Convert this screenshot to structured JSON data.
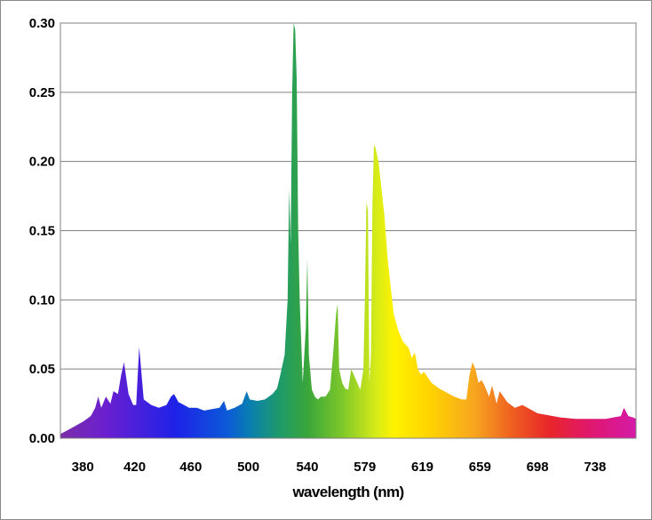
{
  "chart_data": {
    "type": "area",
    "title": "",
    "xlabel": "wavelength (nm)",
    "ylabel": "",
    "xlim": [
      380,
      760
    ],
    "ylim": [
      0,
      0.3
    ],
    "x_tick_labels": [
      "380",
      "420",
      "460",
      "500",
      "540",
      "579",
      "619",
      "659",
      "698",
      "738"
    ],
    "y_tick_labels": [
      "0.00",
      "0.05",
      "0.10",
      "0.15",
      "0.20",
      "0.25",
      "0.30"
    ],
    "grid": "horizontal",
    "legend": "none",
    "fill": "visible-spectrum gradient",
    "x": [
      380,
      385,
      390,
      395,
      400,
      403,
      405,
      407,
      410,
      413,
      415,
      418,
      420,
      422,
      425,
      428,
      430,
      432,
      435,
      440,
      445,
      450,
      453,
      455,
      458,
      460,
      465,
      470,
      475,
      480,
      485,
      488,
      490,
      495,
      500,
      503,
      505,
      510,
      515,
      520,
      523,
      525,
      528,
      530,
      531,
      532,
      533,
      534,
      535,
      536,
      537,
      538,
      540,
      542,
      543,
      544,
      546,
      548,
      550,
      552,
      555,
      558,
      560,
      562,
      563,
      564,
      566,
      568,
      570,
      572,
      574,
      576,
      578,
      580,
      581,
      582,
      583,
      584,
      585,
      586,
      587,
      588,
      590,
      592,
      594,
      596,
      598,
      600,
      603,
      606,
      610,
      612,
      614,
      616,
      618,
      620,
      625,
      630,
      635,
      640,
      645,
      648,
      650,
      652,
      654,
      656,
      658,
      660,
      663,
      665,
      668,
      670,
      675,
      680,
      685,
      690,
      695,
      700,
      710,
      720,
      730,
      740,
      745,
      750,
      752,
      755,
      758,
      760
    ],
    "y": [
      0.003,
      0.006,
      0.009,
      0.012,
      0.016,
      0.022,
      0.03,
      0.022,
      0.03,
      0.025,
      0.034,
      0.032,
      0.045,
      0.055,
      0.032,
      0.024,
      0.024,
      0.066,
      0.028,
      0.024,
      0.022,
      0.024,
      0.03,
      0.032,
      0.026,
      0.025,
      0.022,
      0.022,
      0.02,
      0.021,
      0.022,
      0.027,
      0.02,
      0.022,
      0.025,
      0.034,
      0.028,
      0.027,
      0.028,
      0.032,
      0.036,
      0.045,
      0.06,
      0.1,
      0.18,
      0.14,
      0.25,
      0.3,
      0.295,
      0.26,
      0.15,
      0.1,
      0.04,
      0.08,
      0.13,
      0.06,
      0.035,
      0.03,
      0.028,
      0.03,
      0.03,
      0.035,
      0.06,
      0.09,
      0.097,
      0.05,
      0.04,
      0.036,
      0.035,
      0.05,
      0.045,
      0.04,
      0.035,
      0.05,
      0.1,
      0.17,
      0.165,
      0.04,
      0.06,
      0.17,
      0.212,
      0.21,
      0.2,
      0.18,
      0.16,
      0.13,
      0.11,
      0.09,
      0.078,
      0.07,
      0.065,
      0.058,
      0.062,
      0.05,
      0.046,
      0.048,
      0.04,
      0.036,
      0.033,
      0.03,
      0.028,
      0.028,
      0.045,
      0.055,
      0.05,
      0.04,
      0.042,
      0.038,
      0.03,
      0.038,
      0.025,
      0.034,
      0.026,
      0.022,
      0.024,
      0.021,
      0.018,
      0.017,
      0.015,
      0.014,
      0.014,
      0.014,
      0.015,
      0.016,
      0.022,
      0.016,
      0.015,
      0.014
    ]
  }
}
